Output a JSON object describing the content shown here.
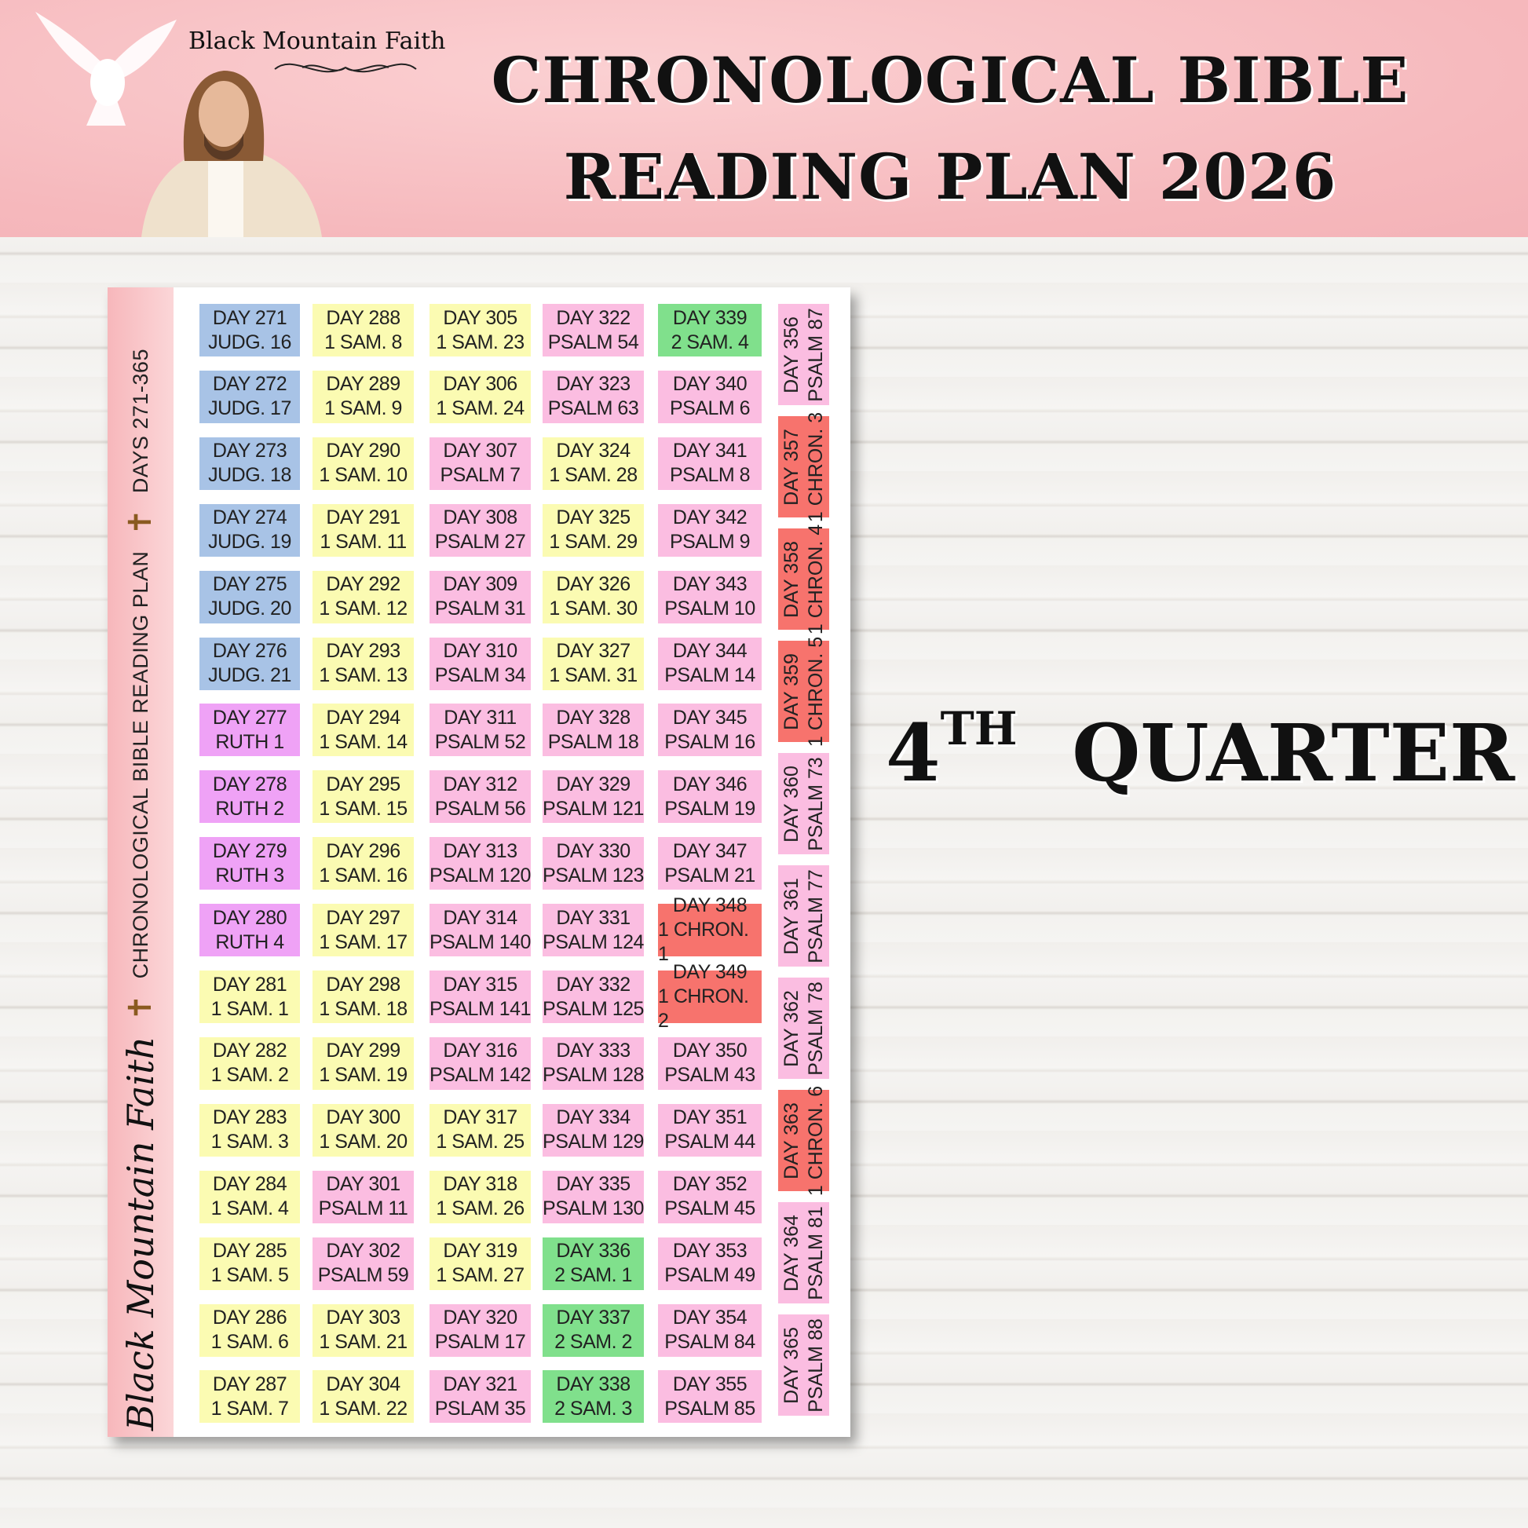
{
  "header": {
    "brand": "Black Mountain Faith",
    "title_line1": "CHRONOLOGICAL BIBLE",
    "title_line2": "READING PLAN  2026"
  },
  "quarter": {
    "ordinal": "4",
    "suffix": "TH",
    "label": "QUARTER"
  },
  "sidebar": {
    "brand_script": "Black Mountain Faith",
    "plan_label": "CHRONOLOGICAL BIBLE READING PLAN",
    "range_label": "DAYS 271-365",
    "cross": "✝"
  },
  "colors": {
    "blue": "#a8c3e6",
    "yellow": "#fbfbb2",
    "pink": "#fbbde1",
    "purple": "#efa2f6",
    "green": "#80e08c",
    "red": "#f7736d"
  },
  "columns": [
    [
      [
        "DAY 271",
        "JUDG. 16",
        "blue"
      ],
      [
        "DAY 272",
        "JUDG. 17",
        "blue"
      ],
      [
        "DAY 273",
        "JUDG. 18",
        "blue"
      ],
      [
        "DAY 274",
        "JUDG. 19",
        "blue"
      ],
      [
        "DAY 275",
        "JUDG. 20",
        "blue"
      ],
      [
        "DAY 276",
        "JUDG. 21",
        "blue"
      ],
      [
        "DAY 277",
        "RUTH 1",
        "purple"
      ],
      [
        "DAY 278",
        "RUTH 2",
        "purple"
      ],
      [
        "DAY 279",
        "RUTH 3",
        "purple"
      ],
      [
        "DAY 280",
        "RUTH 4",
        "purple"
      ],
      [
        "DAY 281",
        "1 SAM. 1",
        "yellow"
      ],
      [
        "DAY 282",
        "1 SAM. 2",
        "yellow"
      ],
      [
        "DAY 283",
        "1 SAM. 3",
        "yellow"
      ],
      [
        "DAY 284",
        "1 SAM. 4",
        "yellow"
      ],
      [
        "DAY 285",
        "1 SAM. 5",
        "yellow"
      ],
      [
        "DAY 286",
        "1 SAM. 6",
        "yellow"
      ],
      [
        "DAY 287",
        "1 SAM. 7",
        "yellow"
      ]
    ],
    [
      [
        "DAY 288",
        "1 SAM. 8",
        "yellow"
      ],
      [
        "DAY 289",
        "1 SAM. 9",
        "yellow"
      ],
      [
        "DAY 290",
        "1 SAM. 10",
        "yellow"
      ],
      [
        "DAY 291",
        "1 SAM. 11",
        "yellow"
      ],
      [
        "DAY 292",
        "1 SAM. 12",
        "yellow"
      ],
      [
        "DAY 293",
        "1 SAM. 13",
        "yellow"
      ],
      [
        "DAY 294",
        "1 SAM. 14",
        "yellow"
      ],
      [
        "DAY 295",
        "1 SAM. 15",
        "yellow"
      ],
      [
        "DAY 296",
        "1 SAM. 16",
        "yellow"
      ],
      [
        "DAY 297",
        "1 SAM. 17",
        "yellow"
      ],
      [
        "DAY 298",
        "1 SAM. 18",
        "yellow"
      ],
      [
        "DAY 299",
        "1 SAM. 19",
        "yellow"
      ],
      [
        "DAY 300",
        "1 SAM. 20",
        "yellow"
      ],
      [
        "DAY 301",
        "PSALM 11",
        "pink"
      ],
      [
        "DAY 302",
        "PSALM 59",
        "pink"
      ],
      [
        "DAY 303",
        "1 SAM. 21",
        "yellow"
      ],
      [
        "DAY 304",
        "1 SAM. 22",
        "yellow"
      ]
    ],
    [
      [
        "DAY 305",
        "1 SAM. 23",
        "yellow"
      ],
      [
        "DAY 306",
        "1 SAM. 24",
        "yellow"
      ],
      [
        "DAY 307",
        "PSALM 7",
        "pink"
      ],
      [
        "DAY 308",
        "PSALM 27",
        "pink"
      ],
      [
        "DAY 309",
        "PSALM 31",
        "pink"
      ],
      [
        "DAY 310",
        "PSALM 34",
        "pink"
      ],
      [
        "DAY 311",
        "PSALM 52",
        "pink"
      ],
      [
        "DAY 312",
        "PSALM 56",
        "pink"
      ],
      [
        "DAY 313",
        "PSALM 120",
        "pink"
      ],
      [
        "DAY 314",
        "PSALM 140",
        "pink"
      ],
      [
        "DAY 315",
        "PSALM 141",
        "pink"
      ],
      [
        "DAY 316",
        "PSALM 142",
        "pink"
      ],
      [
        "DAY 317",
        "1 SAM. 25",
        "yellow"
      ],
      [
        "DAY 318",
        "1 SAM. 26",
        "yellow"
      ],
      [
        "DAY 319",
        "1 SAM. 27",
        "yellow"
      ],
      [
        "DAY 320",
        "PSALM 17",
        "pink"
      ],
      [
        "DAY 321",
        "PSLAM 35",
        "pink"
      ]
    ],
    [
      [
        "DAY 322",
        "PSALM 54",
        "pink"
      ],
      [
        "DAY 323",
        "PSALM 63",
        "pink"
      ],
      [
        "DAY 324",
        "1 SAM. 28",
        "yellow"
      ],
      [
        "DAY 325",
        "1 SAM. 29",
        "yellow"
      ],
      [
        "DAY 326",
        "1 SAM. 30",
        "yellow"
      ],
      [
        "DAY 327",
        "1 SAM. 31",
        "yellow"
      ],
      [
        "DAY 328",
        "PSALM 18",
        "pink"
      ],
      [
        "DAY 329",
        "PSALM 121",
        "pink"
      ],
      [
        "DAY 330",
        "PSALM 123",
        "pink"
      ],
      [
        "DAY 331",
        "PSALM 124",
        "pink"
      ],
      [
        "DAY 332",
        "PSALM 125",
        "pink"
      ],
      [
        "DAY 333",
        "PSALM 128",
        "pink"
      ],
      [
        "DAY 334",
        "PSALM 129",
        "pink"
      ],
      [
        "DAY 335",
        "PSALM 130",
        "pink"
      ],
      [
        "DAY 336",
        "2 SAM. 1",
        "green"
      ],
      [
        "DAY 337",
        "2 SAM. 2",
        "green"
      ],
      [
        "DAY 338",
        "2 SAM. 3",
        "green"
      ]
    ],
    [
      [
        "DAY 339",
        "2 SAM. 4",
        "green"
      ],
      [
        "DAY 340",
        "PSALM 6",
        "pink"
      ],
      [
        "DAY 341",
        "PSALM 8",
        "pink"
      ],
      [
        "DAY 342",
        "PSALM 9",
        "pink"
      ],
      [
        "DAY 343",
        "PSALM 10",
        "pink"
      ],
      [
        "DAY 344",
        "PSALM 14",
        "pink"
      ],
      [
        "DAY 345",
        "PSALM 16",
        "pink"
      ],
      [
        "DAY 346",
        "PSALM 19",
        "pink"
      ],
      [
        "DAY 347",
        "PSALM 21",
        "pink"
      ],
      [
        "DAY 348",
        "1 CHRON. 1",
        "red"
      ],
      [
        "DAY 349",
        "1 CHRON. 2",
        "red"
      ],
      [
        "DAY 350",
        "PSALM 43",
        "pink"
      ],
      [
        "DAY 351",
        "PSALM 44",
        "pink"
      ],
      [
        "DAY 352",
        "PSALM 45",
        "pink"
      ],
      [
        "DAY 353",
        "PSALM 49",
        "pink"
      ],
      [
        "DAY 354",
        "PSALM 84",
        "pink"
      ],
      [
        "DAY 355",
        "PSALM 85",
        "pink"
      ]
    ]
  ],
  "vertical_column": [
    [
      "DAY 356",
      "PSALM 87",
      "pink"
    ],
    [
      "DAY 357",
      "1 CHRON. 3",
      "red"
    ],
    [
      "DAY 358",
      "1 CHRON. 4",
      "red"
    ],
    [
      "DAY 359",
      "1 CHRON. 5",
      "red"
    ],
    [
      "DAY 360",
      "PSALM 73",
      "pink"
    ],
    [
      "DAY 361",
      "PSALM 77",
      "pink"
    ],
    [
      "DAY 362",
      "PSALM 78",
      "pink"
    ],
    [
      "DAY 363",
      "1 CHRON. 6",
      "red"
    ],
    [
      "DAY 364",
      "PSALM 81",
      "pink"
    ],
    [
      "DAY 365",
      "PSALM 88",
      "pink"
    ]
  ]
}
